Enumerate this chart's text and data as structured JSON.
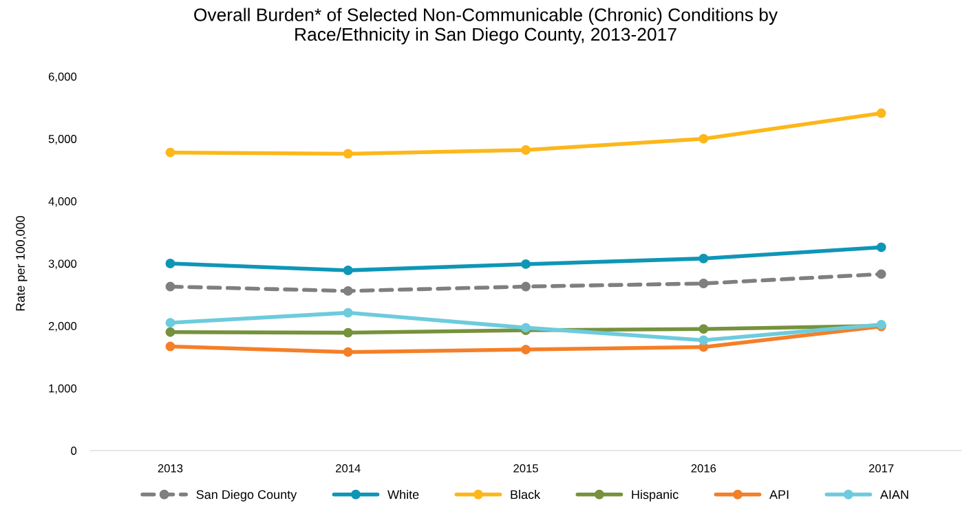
{
  "chart_data": {
    "type": "line",
    "title": "Overall Burden* of Selected Non-Communicable (Chronic) Conditions by\nRace/Ethnicity in San Diego County, 2013-2017",
    "ylabel": "Rate per 100,000",
    "categories": [
      "2013",
      "2014",
      "2015",
      "2016",
      "2017"
    ],
    "series": [
      {
        "name": "San Diego County",
        "color": "#7f7f7f",
        "line_style": "dashed",
        "values": [
          2630,
          2560,
          2630,
          2680,
          2830
        ]
      },
      {
        "name": "White",
        "color": "#0e96b7",
        "values": [
          3000,
          2890,
          2990,
          3080,
          3260
        ]
      },
      {
        "name": "Black",
        "color": "#fdb71a",
        "values": [
          4780,
          4760,
          4820,
          5000,
          5410
        ]
      },
      {
        "name": "Hispanic",
        "color": "#76923c",
        "values": [
          1900,
          1890,
          1930,
          1950,
          2000
        ]
      },
      {
        "name": "API",
        "color": "#f47f28",
        "values": [
          1670,
          1580,
          1620,
          1660,
          1990
        ]
      },
      {
        "name": "AIAN",
        "color": "#6dcbdd",
        "values": [
          2050,
          2210,
          1970,
          1770,
          2020
        ]
      }
    ],
    "ylim": [
      0,
      6000
    ],
    "yticks": [
      0,
      {
        "value": 1000,
        "label": "1,000"
      },
      {
        "value": 2000,
        "label": "2,000"
      },
      {
        "value": 3000,
        "label": "3,000"
      },
      {
        "value": 4000,
        "label": "4,000"
      },
      {
        "value": 5000,
        "label": "5,000"
      },
      {
        "value": 6000,
        "label": "6,000"
      }
    ],
    "grid": false,
    "legend": "bottom",
    "marker": "circle",
    "line_style": "solid"
  }
}
